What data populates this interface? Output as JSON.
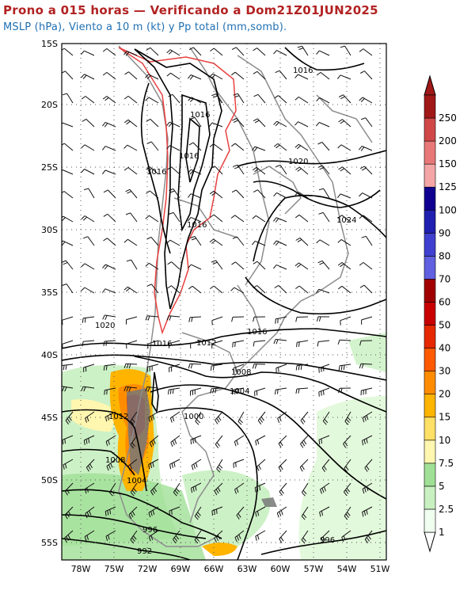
{
  "title": "Prono a 015 horas — Verificando a Dom21Z01JUN2025",
  "subtitle": "MSLP (hPa), Viento a 10 m (kt) y Pp total (mm,somb).",
  "lat_labels": [
    "15S",
    "20S",
    "25S",
    "30S",
    "35S",
    "40S",
    "45S",
    "50S",
    "55S"
  ],
  "lon_labels": [
    "78W",
    "75W",
    "72W",
    "69W",
    "66W",
    "63W",
    "60W",
    "57W",
    "54W",
    "51W"
  ],
  "isobar_labels": [
    "1016",
    "1016",
    "1016",
    "1016",
    "1020",
    "1024",
    "1020",
    "1016",
    "1016",
    "1012",
    "1008",
    "1004",
    "1012",
    "1000",
    "1008",
    "1004",
    "996",
    "992",
    "996"
  ],
  "colorbar": {
    "labels": [
      "1",
      "2.5",
      "5",
      "7.5",
      "10",
      "15",
      "20",
      "30",
      "40",
      "50",
      "60",
      "70",
      "80",
      "90",
      "100",
      "125",
      "150",
      "200",
      "250"
    ],
    "colors": [
      "#f0fff0",
      "#c8f0c0",
      "#a0e096",
      "#fff6b0",
      "#ffe066",
      "#ffb400",
      "#ff8c00",
      "#ff5a00",
      "#e62800",
      "#c80000",
      "#a00000",
      "#6060e0",
      "#4040d0",
      "#2020b0",
      "#100090",
      "#f4a6a6",
      "#e87878",
      "#d04848",
      "#a01818"
    ]
  }
}
